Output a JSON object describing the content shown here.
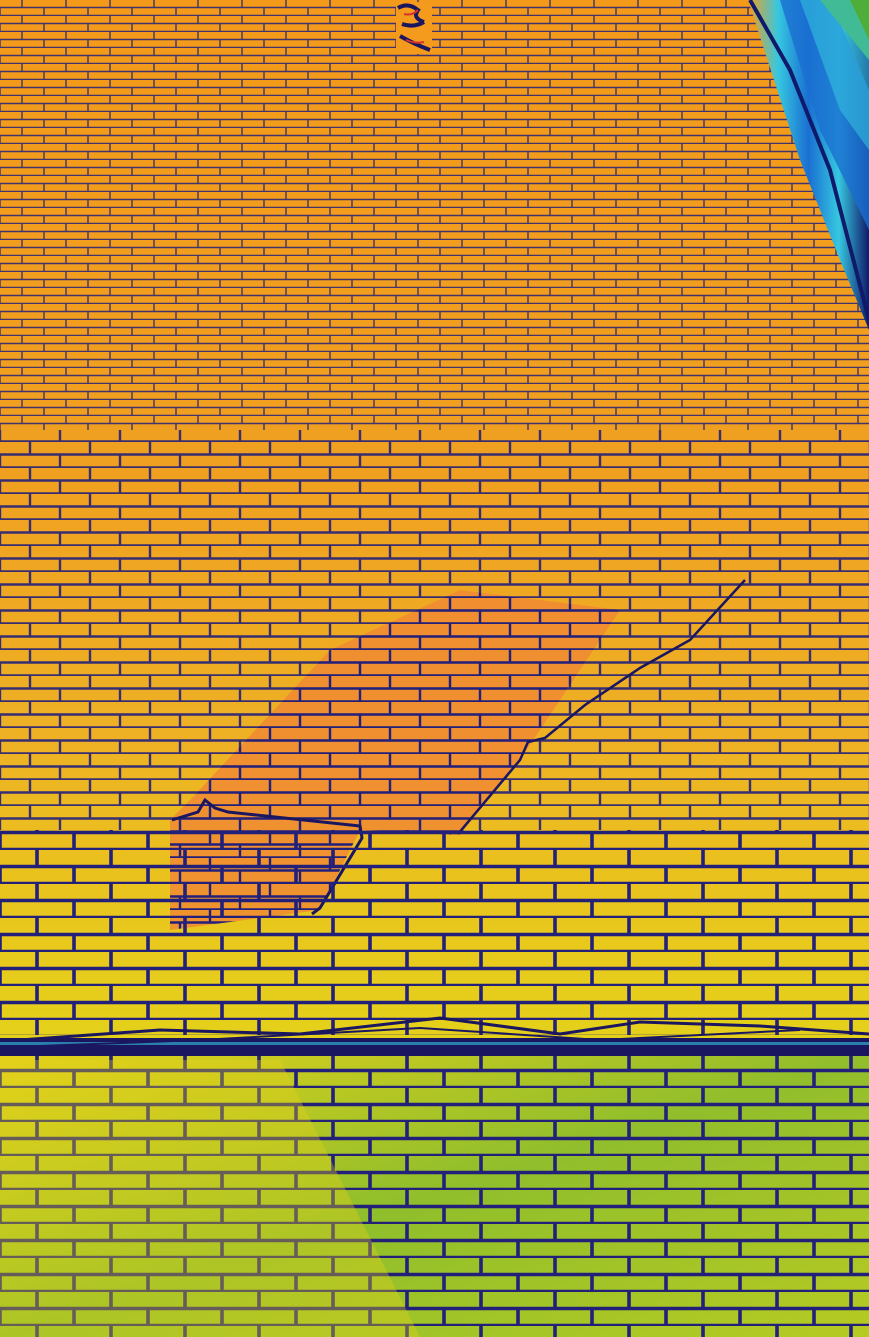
{
  "image": {
    "subject": "brick-wall",
    "palette": {
      "mortar": "#23207a",
      "mortar_light": "#2bb3c9",
      "upper_orange": "#f49a1c",
      "mid_orange": "#ee8a2a",
      "patch_orange": "#f08a32",
      "yellow": "#e9d21a",
      "yellow_green": "#b8cf1e",
      "green": "#4fae3a",
      "crack": "#1b1660",
      "edge_blue": "#1a6fd1",
      "edge_cyan": "#36c7e0",
      "edge_navy": "#101a6a",
      "sign_red": "#d8322a"
    },
    "elements": [
      {
        "name": "upper-brick-wall"
      },
      {
        "name": "repaired-brick-patch"
      },
      {
        "name": "stepped-crack"
      },
      {
        "name": "horizontal-cable"
      },
      {
        "name": "lower-brick-wall"
      },
      {
        "name": "building-edge"
      },
      {
        "name": "sign-fragment"
      }
    ]
  }
}
